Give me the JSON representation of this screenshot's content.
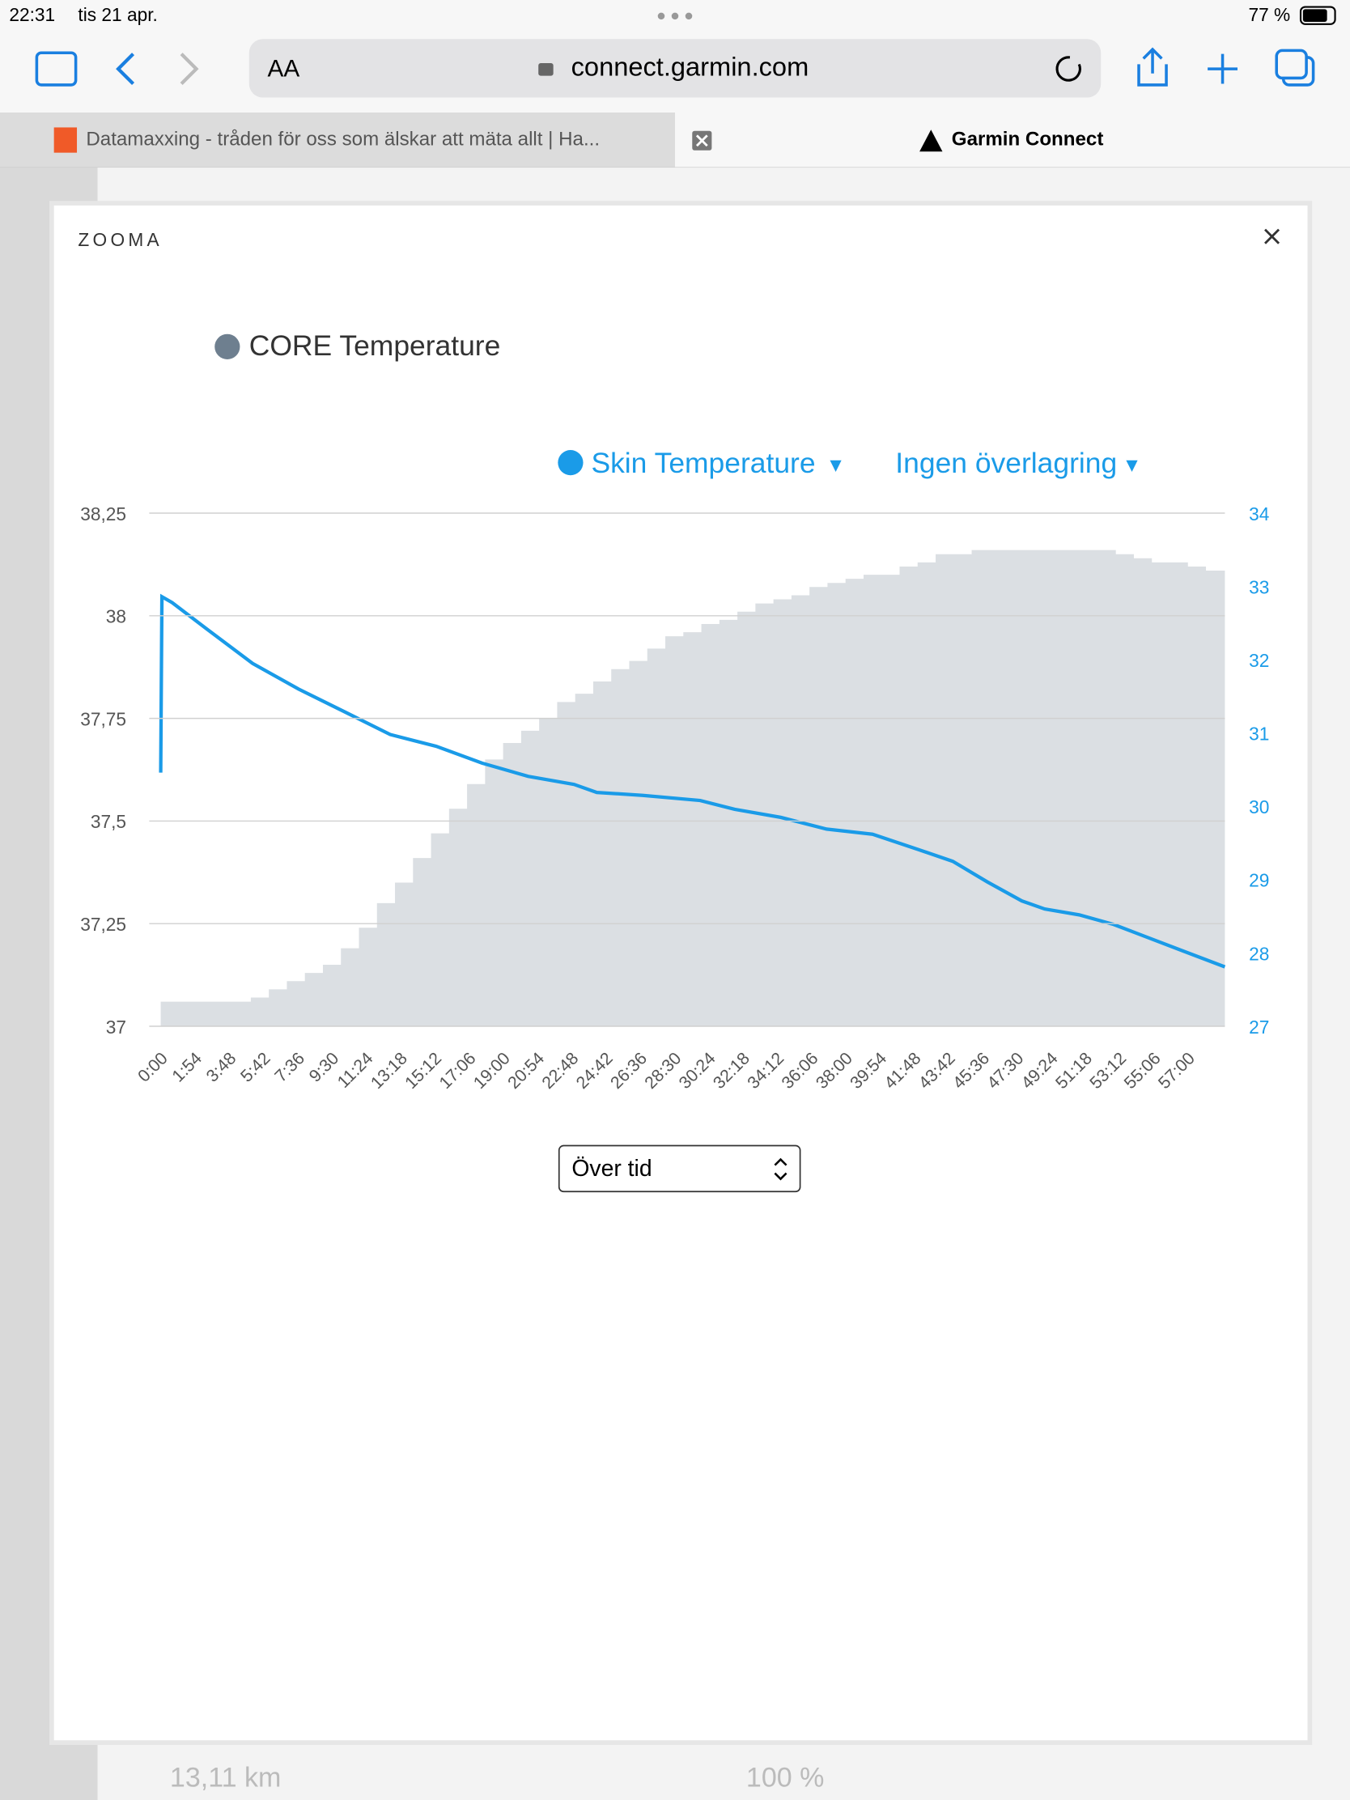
{
  "status_bar": {
    "time": "22:31",
    "date": "tis 21 apr.",
    "battery": "77 %"
  },
  "browser": {
    "text_size": "AA",
    "url": "connect.garmin.com"
  },
  "tabs": [
    "Datamaxxing - tråden för oss som älskar att mäta allt | Ha...",
    "Garmin Connect"
  ],
  "modal": {
    "title": "ZOOMA",
    "select": "Över tid"
  },
  "background": {
    "distance": "13,11 km",
    "percent": "100 %"
  },
  "chart_data": {
    "type": "line",
    "overlay_label": "Ingen överlagring",
    "xlim": [
      0,
      3543
    ],
    "xticks": [
      {
        "value": 0,
        "label": "0:00"
      },
      {
        "value": 114,
        "label": "1:54"
      },
      {
        "value": 228,
        "label": "3:48"
      },
      {
        "value": 342,
        "label": "5:42"
      },
      {
        "value": 456,
        "label": "7:36"
      },
      {
        "value": 570,
        "label": "9:30"
      },
      {
        "value": 684,
        "label": "11:24"
      },
      {
        "value": 798,
        "label": "13:18"
      },
      {
        "value": 912,
        "label": "15:12"
      },
      {
        "value": 1026,
        "label": "17:06"
      },
      {
        "value": 1140,
        "label": "19:00"
      },
      {
        "value": 1254,
        "label": "20:54"
      },
      {
        "value": 1368,
        "label": "22:48"
      },
      {
        "value": 1482,
        "label": "24:42"
      },
      {
        "value": 1596,
        "label": "26:36"
      },
      {
        "value": 1710,
        "label": "28:30"
      },
      {
        "value": 1824,
        "label": "30:24"
      },
      {
        "value": 1938,
        "label": "32:18"
      },
      {
        "value": 2052,
        "label": "34:12"
      },
      {
        "value": 2166,
        "label": "36:06"
      },
      {
        "value": 2280,
        "label": "38:00"
      },
      {
        "value": 2394,
        "label": "39:54"
      },
      {
        "value": 2508,
        "label": "41:48"
      },
      {
        "value": 2622,
        "label": "43:42"
      },
      {
        "value": 2736,
        "label": "45:36"
      },
      {
        "value": 2850,
        "label": "47:30"
      },
      {
        "value": 2964,
        "label": "49:24"
      },
      {
        "value": 3078,
        "label": "51:18"
      },
      {
        "value": 3192,
        "label": "53:12"
      },
      {
        "value": 3306,
        "label": "55:06"
      },
      {
        "value": 3420,
        "label": "57:00"
      }
    ],
    "ylim": [
      37,
      38.25
    ],
    "yticks": [
      37,
      {
        "value": 37.25,
        "label": "37,25"
      },
      {
        "value": 37.5,
        "label": "37,5"
      },
      {
        "value": 37.75,
        "label": "37,75"
      },
      38,
      {
        "value": 38.25,
        "label": "38,25"
      }
    ],
    "y2lim": [
      27,
      34
    ],
    "y2ticks": [
      27,
      28,
      29,
      30,
      31,
      32,
      33,
      34
    ],
    "grid": true,
    "series": [
      {
        "name": "CORE Temperature",
        "color": "#6e7f8f",
        "style": "step-area",
        "x": [
          0,
          60,
          120,
          180,
          240,
          300,
          360,
          420,
          480,
          540,
          600,
          660,
          720,
          780,
          840,
          900,
          960,
          1020,
          1080,
          1140,
          1200,
          1260,
          1320,
          1380,
          1440,
          1500,
          1560,
          1620,
          1680,
          1740,
          1800,
          1860,
          1920,
          1980,
          2040,
          2100,
          2160,
          2220,
          2280,
          2340,
          2400,
          2460,
          2520,
          2580,
          2640,
          2700,
          2760,
          2820,
          2880,
          2940,
          3000,
          3060,
          3120,
          3180,
          3240,
          3300,
          3360,
          3420,
          3480
        ],
        "values": [
          37.06,
          37.06,
          37.06,
          37.06,
          37.06,
          37.07,
          37.09,
          37.11,
          37.13,
          37.15,
          37.19,
          37.24,
          37.3,
          37.35,
          37.41,
          37.47,
          37.53,
          37.59,
          37.65,
          37.69,
          37.72,
          37.75,
          37.79,
          37.81,
          37.84,
          37.87,
          37.89,
          37.92,
          37.95,
          37.96,
          37.98,
          37.99,
          38.01,
          38.03,
          38.04,
          38.05,
          38.07,
          38.08,
          38.09,
          38.1,
          38.1,
          38.12,
          38.13,
          38.15,
          38.15,
          38.16,
          38.16,
          38.16,
          38.16,
          38.16,
          38.16,
          38.16,
          38.16,
          38.15,
          38.14,
          38.13,
          38.13,
          38.12,
          38.11
        ]
      },
      {
        "name": "Skin Temperature",
        "color": "#1a9be8",
        "axis": "y2",
        "style": "line",
        "x": [
          0,
          4,
          38,
          153,
          306,
          459,
          612,
          764,
          917,
          1070,
          1223,
          1376,
          1452,
          1605,
          1796,
          1911,
          2064,
          2217,
          2370,
          2523,
          2637,
          2752,
          2867,
          2943,
          3058,
          3172,
          3287,
          3402,
          3543
        ],
        "values": [
          30.46,
          32.86,
          32.78,
          32.42,
          31.95,
          31.6,
          31.29,
          30.98,
          30.82,
          30.59,
          30.41,
          30.3,
          30.19,
          30.15,
          30.08,
          29.96,
          29.85,
          29.69,
          29.62,
          29.41,
          29.25,
          28.97,
          28.71,
          28.6,
          28.52,
          28.39,
          28.21,
          28.03,
          27.81
        ]
      }
    ]
  }
}
